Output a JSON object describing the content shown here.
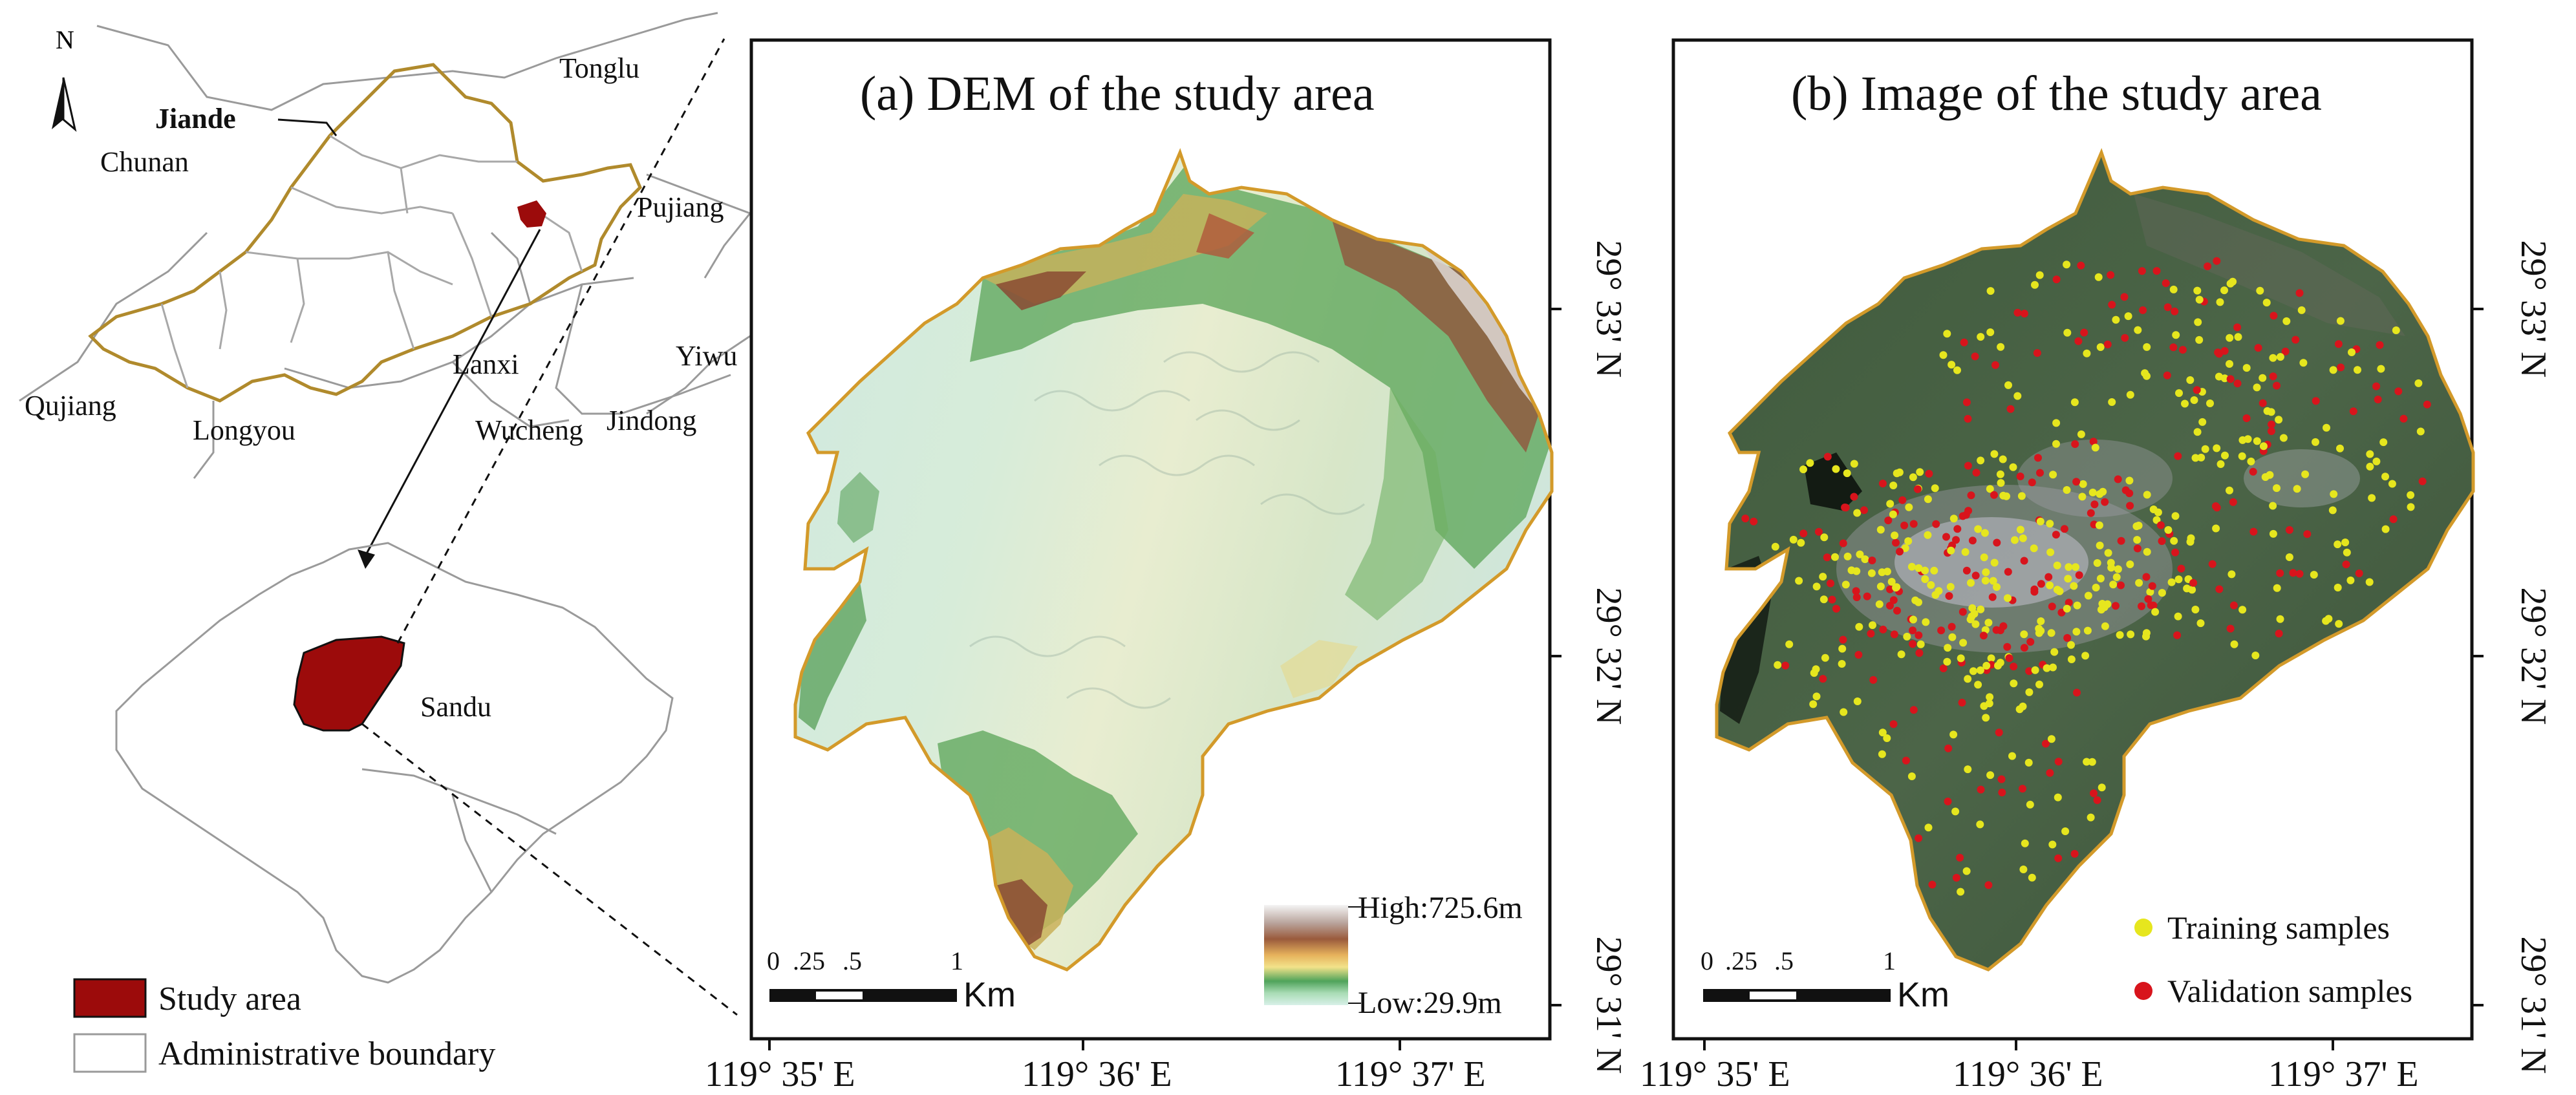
{
  "locator": {
    "north_label": "N",
    "county_name": "Jiande",
    "places": {
      "tonglu": "Tonglu",
      "chunan": "Chunan",
      "pujiang": "Pujiang",
      "lanxi": "Lanxi",
      "yiwu": "Yiwu",
      "qujiang": "Qujiang",
      "longyou": "Longyou",
      "wucheng": "Wucheng",
      "jindong": "Jindong",
      "sandu": "Sandu"
    },
    "legend": {
      "study_area": "Study area",
      "admin_boundary": "Administrative boundary"
    },
    "colors": {
      "study_area": "#9c0b0b",
      "county_boundary": "#b08a2c",
      "boundary": "#9a9a9a"
    }
  },
  "panel_a": {
    "title": "(a)  DEM of the study area",
    "legend_high": "High:725.6m",
    "legend_low": "Low:29.9m",
    "scale": {
      "labels": [
        "0",
        ".25",
        ".5",
        "1"
      ],
      "unit": "Km"
    }
  },
  "panel_b": {
    "title": "(b)  Image of the study area",
    "legend": {
      "training": "Training samples",
      "validation": "Validation samples"
    },
    "scale": {
      "labels": [
        "0",
        ".25",
        ".5",
        "1"
      ],
      "unit": "Km"
    },
    "colors": {
      "training": "#e6e61e",
      "validation": "#d8141c"
    }
  },
  "axes": {
    "lon_labels": [
      "119° 35' E",
      "119° 36' E",
      "119° 37' E"
    ],
    "lat_labels": [
      "29° 33' N",
      "29° 32' N",
      "29° 31' N"
    ]
  }
}
